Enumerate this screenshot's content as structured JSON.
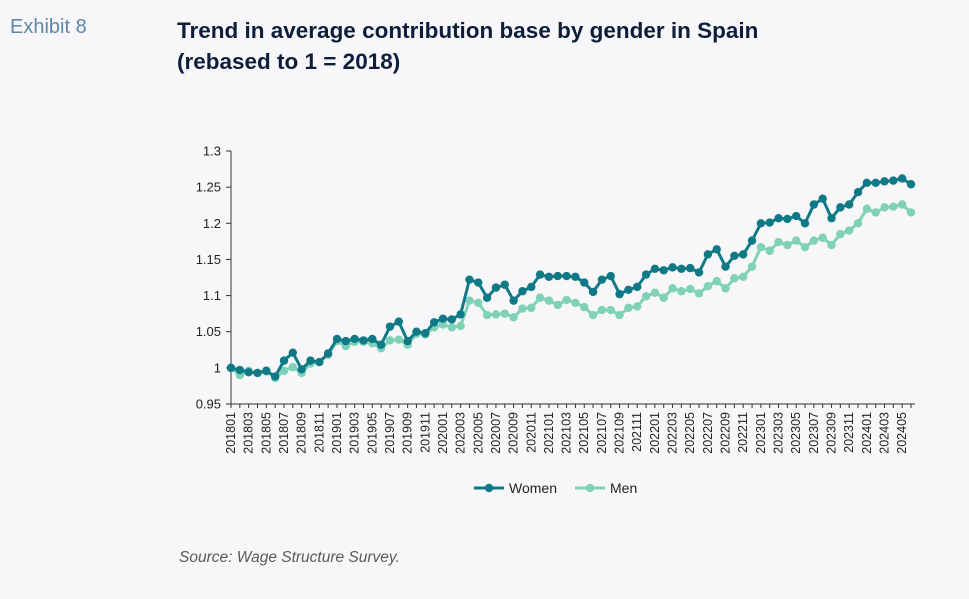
{
  "exhibit_label": "Exhibit 8",
  "title_line1": "Trend in average contribution base by gender in Spain",
  "title_line2": "(rebased to 1 = 2018)",
  "source": "Source: Wage Structure Survey.",
  "colors": {
    "women": "#0f7a86",
    "men": "#7fd1b8",
    "axis": "#333333",
    "background": "#f7f7f9"
  },
  "chart_data": {
    "type": "line",
    "title": "Trend in average contribution base by gender in Spain (rebased to 1 = 2018)",
    "xlabel": "",
    "ylabel": "",
    "ylim": [
      0.95,
      1.3
    ],
    "yticks": [
      "0.95",
      "1",
      "1.05",
      "1.1",
      "1.15",
      "1.2",
      "1.25",
      "1.3"
    ],
    "grid": false,
    "legend": "bottom",
    "x_tick_labels": [
      "201801",
      "201803",
      "201805",
      "201807",
      "201809",
      "201811",
      "201901",
      "201903",
      "201905",
      "201907",
      "201909",
      "201911",
      "202001",
      "202003",
      "202005",
      "202007",
      "202009",
      "202011",
      "202101",
      "202103",
      "202105",
      "202107",
      "202109",
      "202111",
      "202201",
      "202203",
      "202205",
      "202207",
      "202209",
      "202211",
      "202301",
      "202303",
      "202305",
      "202307",
      "202309",
      "202311",
      "202401",
      "202403",
      "202405"
    ],
    "series": [
      {
        "name": "Women",
        "values": [
          1.0,
          0.997,
          0.994,
          0.993,
          0.996,
          0.988,
          1.01,
          1.021,
          0.998,
          1.01,
          1.008,
          1.02,
          1.04,
          1.037,
          1.04,
          1.038,
          1.04,
          1.032,
          1.057,
          1.064,
          1.037,
          1.05,
          1.048,
          1.063,
          1.068,
          1.067,
          1.074,
          1.122,
          1.118,
          1.097,
          1.111,
          1.115,
          1.093,
          1.106,
          1.112,
          1.129,
          1.126,
          1.127,
          1.127,
          1.126,
          1.118,
          1.105,
          1.122,
          1.127,
          1.102,
          1.108,
          1.112,
          1.129,
          1.137,
          1.135,
          1.139,
          1.137,
          1.138,
          1.132,
          1.157,
          1.164,
          1.14,
          1.155,
          1.157,
          1.176,
          1.2,
          1.201,
          1.207,
          1.206,
          1.21,
          1.2,
          1.226,
          1.234,
          1.207,
          1.222,
          1.226,
          1.243,
          1.256,
          1.256,
          1.258,
          1.259,
          1.262,
          1.254
        ]
      },
      {
        "name": "Men",
        "values": [
          1.0,
          0.99,
          0.996,
          0.993,
          0.995,
          0.986,
          0.996,
          1.001,
          0.993,
          1.006,
          1.008,
          1.018,
          1.037,
          1.03,
          1.036,
          1.036,
          1.034,
          1.027,
          1.038,
          1.039,
          1.032,
          1.047,
          1.046,
          1.056,
          1.06,
          1.056,
          1.058,
          1.093,
          1.09,
          1.073,
          1.074,
          1.075,
          1.07,
          1.082,
          1.083,
          1.097,
          1.093,
          1.087,
          1.094,
          1.09,
          1.084,
          1.073,
          1.08,
          1.08,
          1.073,
          1.083,
          1.085,
          1.099,
          1.104,
          1.097,
          1.11,
          1.106,
          1.109,
          1.103,
          1.113,
          1.12,
          1.11,
          1.124,
          1.126,
          1.14,
          1.167,
          1.162,
          1.174,
          1.17,
          1.176,
          1.167,
          1.176,
          1.18,
          1.17,
          1.185,
          1.19,
          1.2,
          1.22,
          1.215,
          1.222,
          1.223,
          1.226,
          1.215
        ]
      }
    ]
  }
}
